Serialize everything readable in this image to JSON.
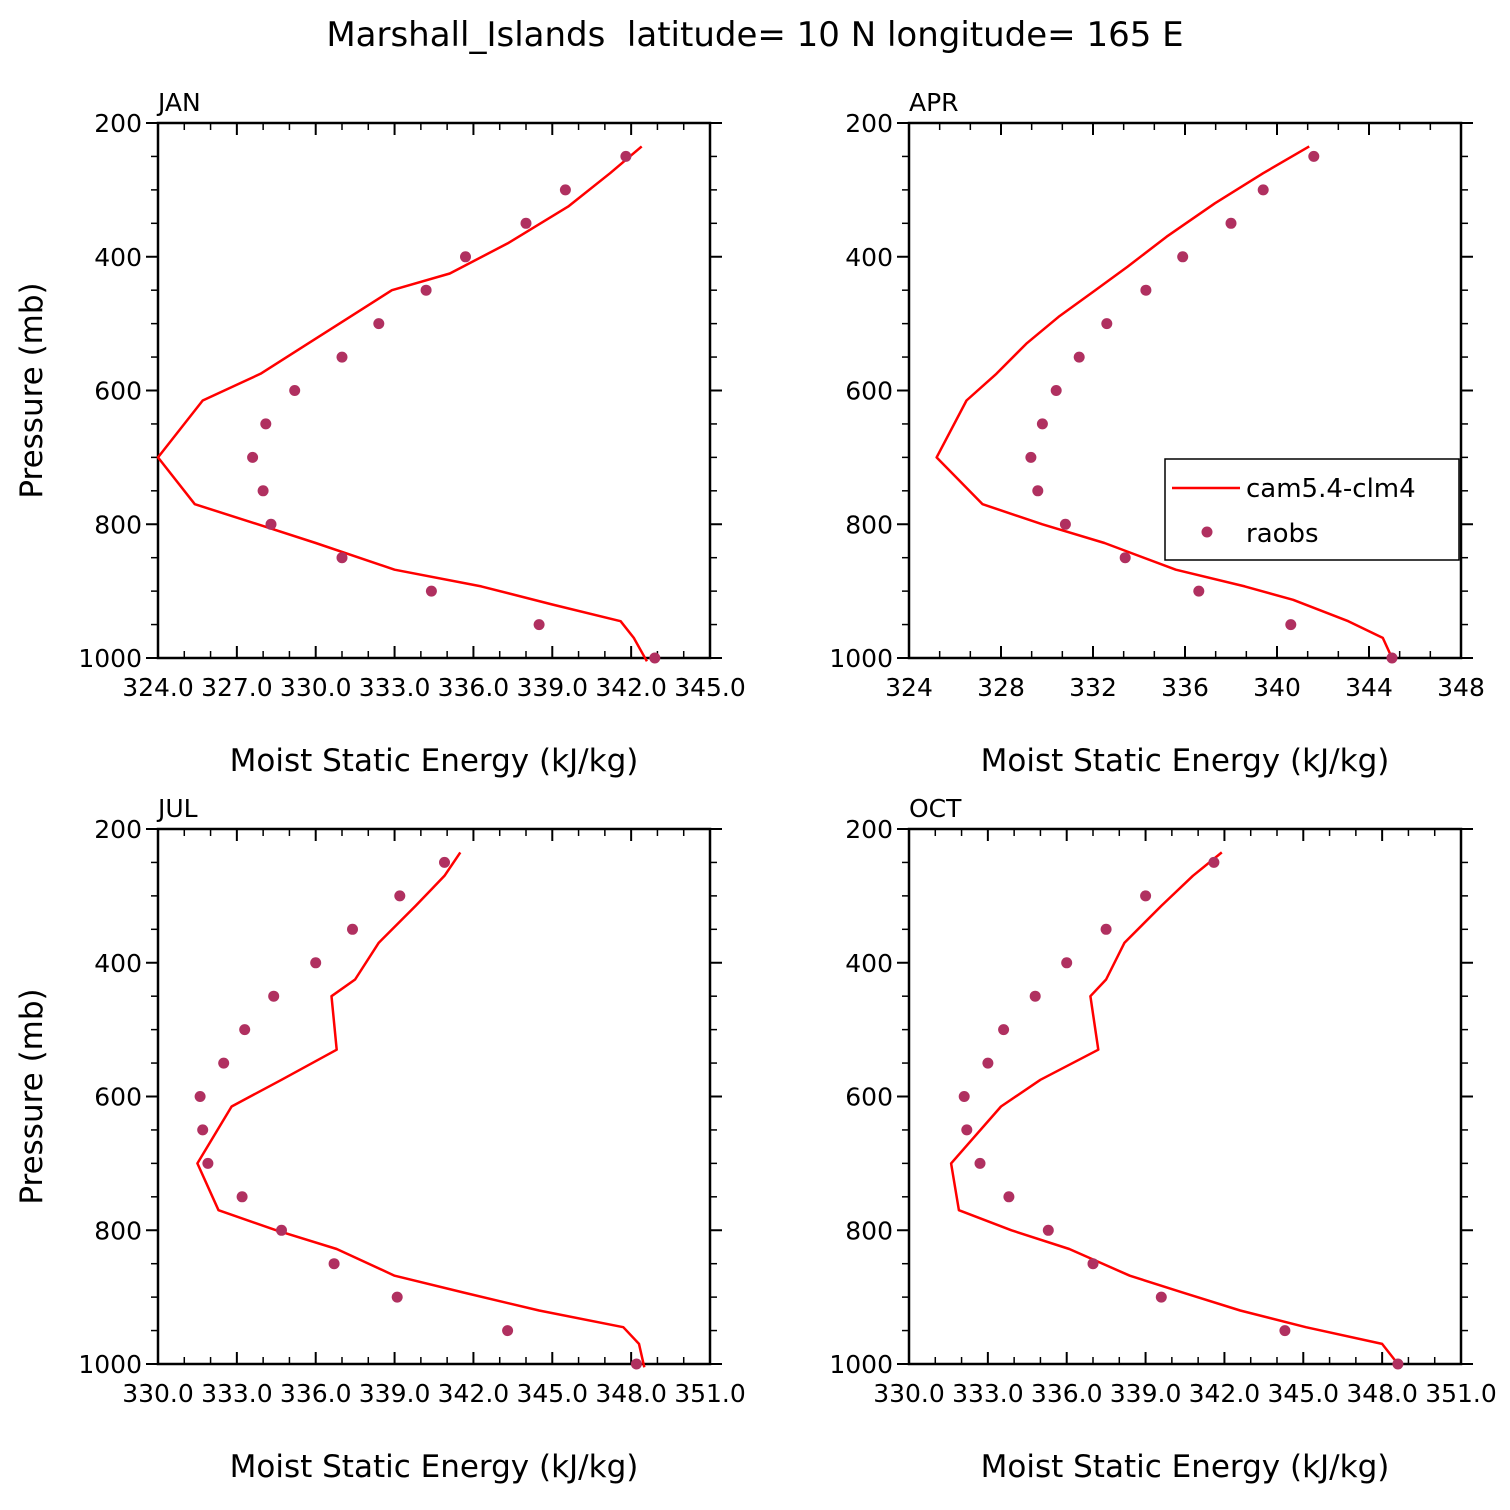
{
  "page": {
    "title": "Marshall_Islands  latitude= 10 N longitude= 165 E"
  },
  "colors": {
    "model_line": "#ff0000",
    "obs_marker": "#b03060",
    "axes": "#000000",
    "background": "#ffffff"
  },
  "legend": {
    "panel": "APR",
    "placement": "right-middle",
    "entries": [
      {
        "label": "cam5.4-clm4",
        "kind": "line"
      },
      {
        "label": "raobs",
        "kind": "marker"
      }
    ]
  },
  "chart_data": [
    {
      "type": "line",
      "title": "JAN",
      "xlabel": "Moist Static Energy (kJ/kg)",
      "ylabel": "Pressure (mb)",
      "xlim": [
        324,
        345
      ],
      "ylim": [
        1000,
        200
      ],
      "xticks": [
        324,
        327,
        330,
        333,
        336,
        339,
        342,
        345
      ],
      "xtick_labels": [
        "324.0",
        "327.0",
        "330.0",
        "333.0",
        "336.0",
        "339.0",
        "342.0",
        "345.0"
      ],
      "yticks": [
        200,
        400,
        600,
        800,
        1000
      ],
      "ytick_labels": [
        "200",
        "400",
        "600",
        "800",
        "1000"
      ],
      "series": [
        {
          "name": "cam5.4-clm4",
          "kind": "line",
          "points": [
            [
              342.4,
              235
            ],
            [
              341.2,
              275
            ],
            [
              339.6,
              325
            ],
            [
              337.3,
              380
            ],
            [
              335.1,
              425
            ],
            [
              332.9,
              450
            ],
            [
              331.3,
              490
            ],
            [
              329.7,
              530
            ],
            [
              327.9,
              575
            ],
            [
              325.7,
              615
            ],
            [
              324.0,
              700
            ],
            [
              325.4,
              770
            ],
            [
              327.8,
              800
            ],
            [
              330.0,
              828
            ],
            [
              333.0,
              868
            ],
            [
              336.3,
              893
            ],
            [
              339.0,
              920
            ],
            [
              341.6,
              945
            ],
            [
              342.1,
              970
            ],
            [
              342.6,
              1005
            ]
          ]
        },
        {
          "name": "raobs",
          "kind": "scatter",
          "points": [
            [
              341.8,
              250
            ],
            [
              339.5,
              300
            ],
            [
              338.0,
              350
            ],
            [
              335.7,
              400
            ],
            [
              334.2,
              450
            ],
            [
              332.4,
              500
            ],
            [
              331.0,
              550
            ],
            [
              329.2,
              600
            ],
            [
              328.1,
              650
            ],
            [
              327.6,
              700
            ],
            [
              328.0,
              750
            ],
            [
              328.3,
              800
            ],
            [
              331.0,
              850
            ],
            [
              334.4,
              900
            ],
            [
              338.5,
              950
            ],
            [
              342.9,
              1000
            ]
          ]
        }
      ]
    },
    {
      "type": "line",
      "title": "APR",
      "xlabel": "Moist Static Energy (kJ/kg)",
      "ylabel": "",
      "xlim": [
        324,
        348
      ],
      "ylim": [
        1000,
        200
      ],
      "xticks": [
        324,
        328,
        332,
        336,
        340,
        344,
        348
      ],
      "xtick_labels": [
        "324",
        "328",
        "332",
        "336",
        "340",
        "344",
        "348"
      ],
      "yticks": [
        200,
        400,
        600,
        800,
        1000
      ],
      "ytick_labels": [
        "200",
        "400",
        "600",
        "800",
        "1000"
      ],
      "series": [
        {
          "name": "cam5.4-clm4",
          "kind": "line",
          "points": [
            [
              341.4,
              235
            ],
            [
              339.4,
              275
            ],
            [
              337.3,
              320
            ],
            [
              335.2,
              370
            ],
            [
              333.5,
              415
            ],
            [
              332.1,
              450
            ],
            [
              330.5,
              490
            ],
            [
              329.1,
              530
            ],
            [
              327.8,
              575
            ],
            [
              326.5,
              615
            ],
            [
              325.2,
              700
            ],
            [
              327.2,
              770
            ],
            [
              329.8,
              800
            ],
            [
              332.5,
              828
            ],
            [
              335.6,
              868
            ],
            [
              338.6,
              893
            ],
            [
              340.7,
              913
            ],
            [
              343.1,
              945
            ],
            [
              344.6,
              970
            ],
            [
              345.0,
              1000
            ]
          ]
        },
        {
          "name": "raobs",
          "kind": "scatter",
          "points": [
            [
              341.6,
              250
            ],
            [
              339.4,
              300
            ],
            [
              338.0,
              350
            ],
            [
              335.9,
              400
            ],
            [
              334.3,
              450
            ],
            [
              332.6,
              500
            ],
            [
              331.4,
              550
            ],
            [
              330.4,
              600
            ],
            [
              329.8,
              650
            ],
            [
              329.3,
              700
            ],
            [
              329.6,
              750
            ],
            [
              330.8,
              800
            ],
            [
              333.4,
              850
            ],
            [
              336.6,
              900
            ],
            [
              340.6,
              950
            ],
            [
              345.0,
              1000
            ]
          ]
        }
      ]
    },
    {
      "type": "line",
      "title": "JUL",
      "xlabel": "Moist Static Energy (kJ/kg)",
      "ylabel": "Pressure (mb)",
      "xlim": [
        330,
        351
      ],
      "ylim": [
        1000,
        200
      ],
      "xticks": [
        330,
        333,
        336,
        339,
        342,
        345,
        348,
        351
      ],
      "xtick_labels": [
        "330.0",
        "333.0",
        "336.0",
        "339.0",
        "342.0",
        "345.0",
        "348.0",
        "351.0"
      ],
      "yticks": [
        200,
        400,
        600,
        800,
        1000
      ],
      "ytick_labels": [
        "200",
        "400",
        "600",
        "800",
        "1000"
      ],
      "series": [
        {
          "name": "cam5.4-clm4",
          "kind": "line",
          "points": [
            [
              341.5,
              235
            ],
            [
              340.9,
              270
            ],
            [
              339.8,
              315
            ],
            [
              338.4,
              370
            ],
            [
              337.5,
              425
            ],
            [
              336.6,
              450
            ],
            [
              336.8,
              530
            ],
            [
              334.7,
              575
            ],
            [
              332.8,
              615
            ],
            [
              331.5,
              700
            ],
            [
              332.3,
              770
            ],
            [
              334.5,
              800
            ],
            [
              336.8,
              828
            ],
            [
              339.0,
              868
            ],
            [
              341.6,
              893
            ],
            [
              344.5,
              920
            ],
            [
              347.7,
              945
            ],
            [
              348.3,
              970
            ],
            [
              348.5,
              1005
            ]
          ]
        },
        {
          "name": "raobs",
          "kind": "scatter",
          "points": [
            [
              340.9,
              250
            ],
            [
              339.2,
              300
            ],
            [
              337.4,
              350
            ],
            [
              336.0,
              400
            ],
            [
              334.4,
              450
            ],
            [
              333.3,
              500
            ],
            [
              332.5,
              550
            ],
            [
              331.6,
              600
            ],
            [
              331.7,
              650
            ],
            [
              331.9,
              700
            ],
            [
              333.2,
              750
            ],
            [
              334.7,
              800
            ],
            [
              336.7,
              850
            ],
            [
              339.1,
              900
            ],
            [
              343.3,
              950
            ],
            [
              348.2,
              1000
            ]
          ]
        }
      ]
    },
    {
      "type": "line",
      "title": "OCT",
      "xlabel": "Moist Static Energy (kJ/kg)",
      "ylabel": "",
      "xlim": [
        330,
        351
      ],
      "ylim": [
        1000,
        200
      ],
      "xticks": [
        330,
        333,
        336,
        339,
        342,
        345,
        348,
        351
      ],
      "xtick_labels": [
        "330.0",
        "333.0",
        "336.0",
        "339.0",
        "342.0",
        "345.0",
        "348.0",
        "351.0"
      ],
      "yticks": [
        200,
        400,
        600,
        800,
        1000
      ],
      "ytick_labels": [
        "200",
        "400",
        "600",
        "800",
        "1000"
      ],
      "series": [
        {
          "name": "cam5.4-clm4",
          "kind": "line",
          "points": [
            [
              341.9,
              235
            ],
            [
              340.8,
              270
            ],
            [
              339.6,
              315
            ],
            [
              338.2,
              370
            ],
            [
              337.5,
              425
            ],
            [
              336.9,
              450
            ],
            [
              337.2,
              530
            ],
            [
              335.0,
              575
            ],
            [
              333.5,
              615
            ],
            [
              331.6,
              700
            ],
            [
              331.9,
              770
            ],
            [
              333.9,
              800
            ],
            [
              336.1,
              828
            ],
            [
              338.4,
              868
            ],
            [
              340.4,
              893
            ],
            [
              342.6,
              920
            ],
            [
              345.1,
              945
            ],
            [
              348.0,
              970
            ],
            [
              348.7,
              1005
            ]
          ]
        },
        {
          "name": "raobs",
          "kind": "scatter",
          "points": [
            [
              341.6,
              250
            ],
            [
              339.0,
              300
            ],
            [
              337.5,
              350
            ],
            [
              336.0,
              400
            ],
            [
              334.8,
              450
            ],
            [
              333.6,
              500
            ],
            [
              333.0,
              550
            ],
            [
              332.1,
              600
            ],
            [
              332.2,
              650
            ],
            [
              332.7,
              700
            ],
            [
              333.8,
              750
            ],
            [
              335.3,
              800
            ],
            [
              337.0,
              850
            ],
            [
              339.6,
              900
            ],
            [
              344.3,
              950
            ],
            [
              348.6,
              1000
            ]
          ]
        }
      ]
    }
  ]
}
